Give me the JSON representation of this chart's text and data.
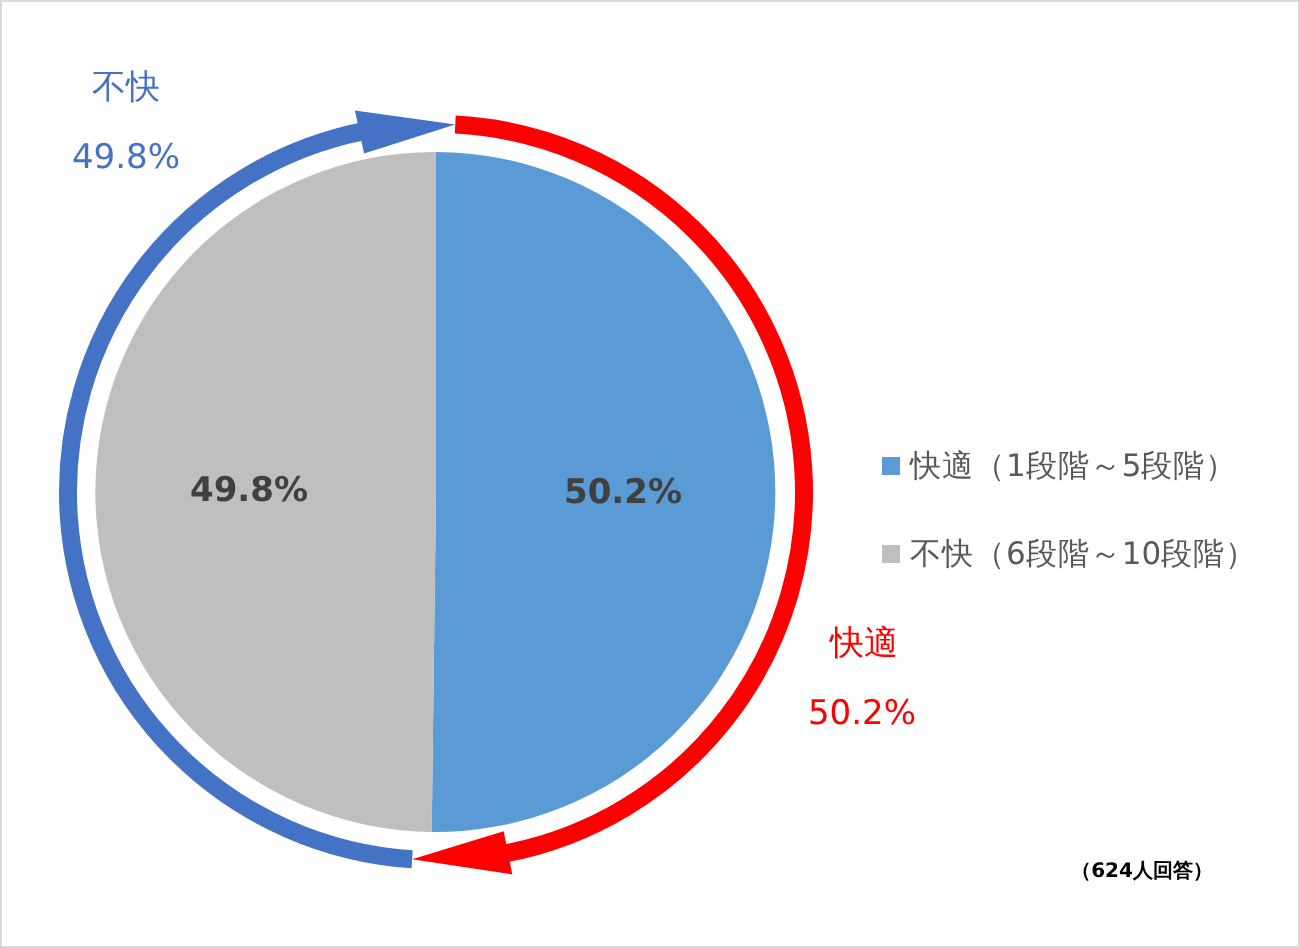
{
  "chart_data": {
    "type": "pie",
    "categories": [
      "快適（1段階～5段階）",
      "不快（6段階～10段階）"
    ],
    "values": [
      50.2,
      49.8
    ],
    "colors": [
      "#5b9bd5",
      "#bfbfbf"
    ],
    "value_labels": [
      "50.2%",
      "49.8%"
    ],
    "legend": "right",
    "annotations": [
      "不快",
      "49.8%",
      "快適",
      "50.2%",
      "（624人回答）"
    ]
  }
}
